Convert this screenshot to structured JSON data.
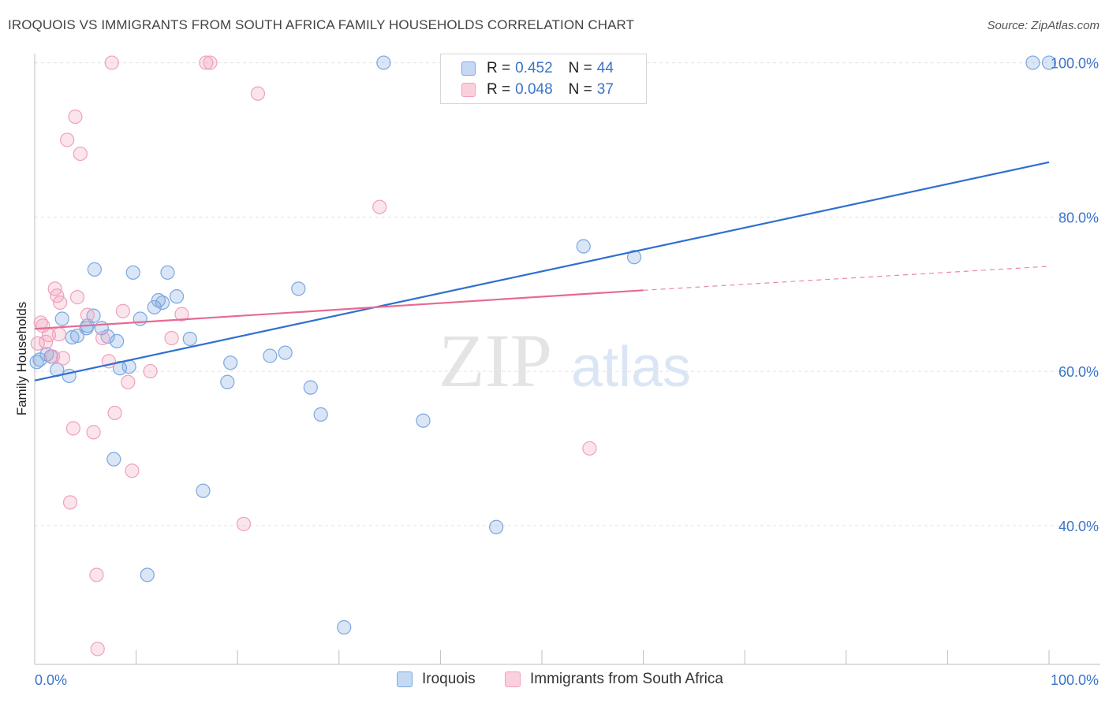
{
  "header": {
    "title": "IROQUOIS VS IMMIGRANTS FROM SOUTH AFRICA FAMILY HOUSEHOLDS CORRELATION CHART",
    "source": "Source: ZipAtlas.com"
  },
  "watermark": {
    "zip": "ZIP",
    "atlas": "atlas"
  },
  "legend": {
    "rows": [
      {
        "r_label": "R =",
        "r_value": "0.452",
        "n_label": "N =",
        "n_value": "44"
      },
      {
        "r_label": "R =",
        "r_value": "0.048",
        "n_label": "N =",
        "n_value": "37"
      }
    ]
  },
  "bottom_legend": {
    "series1": "Iroquois",
    "series2": "Immigrants from South Africa"
  },
  "chart_data": {
    "type": "scatter",
    "title": "IROQUOIS VS IMMIGRANTS FROM SOUTH AFRICA FAMILY HOUSEHOLDS CORRELATION CHART",
    "xlabel": "",
    "ylabel": "Family Households",
    "xlim": [
      0,
      100
    ],
    "ylim": [
      22,
      102
    ],
    "x_tick_labels": [
      "0.0%",
      "100.0%"
    ],
    "y_ticks": [
      40,
      60,
      80,
      100
    ],
    "y_tick_labels": [
      "40.0%",
      "60.0%",
      "80.0%",
      "100.0%"
    ],
    "grid": true,
    "legend_position": "top-center",
    "colors": {
      "series1": "#7ba7e0",
      "series2": "#f0a0bb",
      "trend1": "#2f6fd0",
      "trend2": "#e66a93",
      "axis_text": "#3b74c9"
    },
    "series": [
      {
        "name": "Iroquois",
        "r": 0.452,
        "n": 44,
        "points": [
          [
            0.2,
            61.2
          ],
          [
            0.5,
            61.5
          ],
          [
            1.2,
            62.2
          ],
          [
            1.6,
            61.9
          ],
          [
            2.2,
            60.2
          ],
          [
            2.7,
            66.8
          ],
          [
            3.4,
            59.4
          ],
          [
            3.7,
            64.4
          ],
          [
            4.2,
            64.6
          ],
          [
            5.1,
            65.6
          ],
          [
            5.2,
            65.9
          ],
          [
            5.8,
            67.2
          ],
          [
            5.9,
            73.2
          ],
          [
            6.6,
            65.6
          ],
          [
            7.2,
            64.5
          ],
          [
            7.8,
            48.6
          ],
          [
            8.1,
            63.9
          ],
          [
            8.4,
            60.4
          ],
          [
            9.3,
            60.6
          ],
          [
            9.7,
            72.8
          ],
          [
            10.4,
            66.8
          ],
          [
            11.1,
            33.6
          ],
          [
            11.8,
            68.3
          ],
          [
            12.2,
            69.2
          ],
          [
            12.6,
            68.9
          ],
          [
            13.1,
            72.8
          ],
          [
            14.0,
            69.7
          ],
          [
            15.3,
            64.2
          ],
          [
            16.6,
            44.5
          ],
          [
            19.0,
            58.6
          ],
          [
            19.3,
            61.1
          ],
          [
            23.2,
            62.0
          ],
          [
            24.7,
            62.4
          ],
          [
            26.0,
            70.7
          ],
          [
            27.2,
            57.9
          ],
          [
            28.2,
            54.4
          ],
          [
            30.5,
            26.8
          ],
          [
            38.3,
            53.6
          ],
          [
            45.5,
            39.8
          ],
          [
            54.1,
            76.2
          ],
          [
            59.1,
            74.8
          ],
          [
            98.4,
            100.0
          ],
          [
            100.0,
            100.0
          ],
          [
            34.4,
            100.0
          ]
        ]
      },
      {
        "name": "Immigrants from South Africa",
        "r": 0.048,
        "n": 37,
        "points": [
          [
            0.3,
            63.6
          ],
          [
            0.6,
            66.3
          ],
          [
            0.8,
            65.9
          ],
          [
            1.1,
            63.8
          ],
          [
            1.4,
            64.7
          ],
          [
            1.8,
            61.9
          ],
          [
            2.0,
            70.7
          ],
          [
            2.2,
            69.8
          ],
          [
            2.5,
            68.9
          ],
          [
            2.8,
            61.7
          ],
          [
            3.2,
            90.0
          ],
          [
            3.5,
            43.0
          ],
          [
            3.8,
            52.6
          ],
          [
            4.0,
            93.0
          ],
          [
            4.2,
            69.6
          ],
          [
            4.5,
            88.2
          ],
          [
            5.2,
            67.3
          ],
          [
            5.8,
            52.1
          ],
          [
            6.1,
            33.6
          ],
          [
            6.2,
            24.0
          ],
          [
            6.7,
            64.3
          ],
          [
            7.3,
            61.3
          ],
          [
            7.6,
            100.0
          ],
          [
            7.9,
            54.6
          ],
          [
            8.7,
            67.8
          ],
          [
            9.2,
            58.6
          ],
          [
            9.6,
            47.1
          ],
          [
            11.4,
            60.0
          ],
          [
            13.5,
            64.3
          ],
          [
            14.5,
            67.4
          ],
          [
            16.9,
            100.0
          ],
          [
            17.3,
            100.0
          ],
          [
            20.6,
            40.2
          ],
          [
            22.0,
            96.0
          ],
          [
            34.0,
            81.3
          ],
          [
            54.7,
            50.0
          ],
          [
            2.4,
            64.8
          ]
        ]
      }
    ],
    "trend_lines": [
      {
        "series": "Iroquois",
        "x": [
          0,
          100
        ],
        "y": [
          58.8,
          87.1
        ],
        "style": "solid"
      },
      {
        "series": "Immigrants from South Africa",
        "x": [
          0,
          60
        ],
        "y": [
          65.5,
          70.5
        ],
        "style": "solid",
        "extension_x": [
          60,
          100
        ],
        "extension_y": [
          70.5,
          73.6
        ],
        "extension_style": "dashed"
      }
    ]
  }
}
